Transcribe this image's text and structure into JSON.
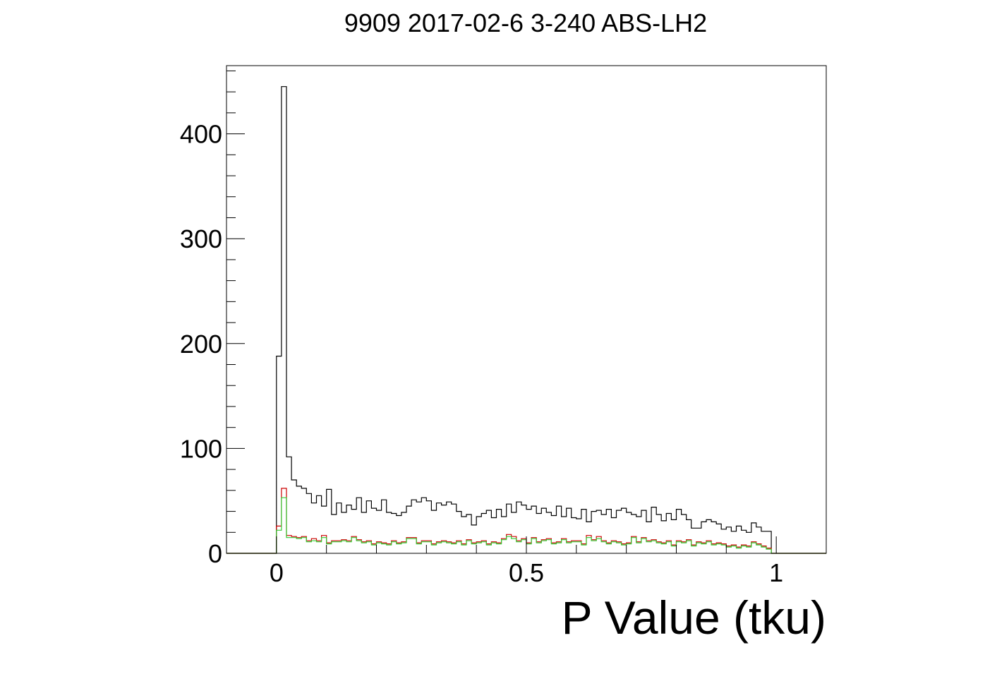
{
  "chart_data": {
    "type": "histogram",
    "title": "9909 2017-02-6 3-240 ABS-LH2",
    "xlabel": "P Value (tku)",
    "ylabel": "",
    "xlim": [
      -0.1,
      1.1
    ],
    "ylim": [
      0,
      465
    ],
    "x_ticks": [
      0,
      0.5,
      1
    ],
    "x_tick_labels": [
      "0",
      "0.5",
      "1"
    ],
    "y_ticks": [
      0,
      100,
      200,
      300,
      400
    ],
    "y_tick_labels": [
      "0",
      "100",
      "200",
      "300",
      "400"
    ],
    "bin_width": 0.01,
    "bin_start": -0.01,
    "series": [
      {
        "color": "#000000",
        "values": [
          0,
          188,
          445,
          92,
          70,
          64,
          62,
          57,
          48,
          55,
          45,
          61,
          37,
          48,
          39,
          46,
          42,
          53,
          39,
          50,
          43,
          41,
          51,
          39,
          38,
          36,
          39,
          45,
          51,
          49,
          53,
          50,
          41,
          48,
          46,
          49,
          47,
          40,
          35,
          37,
          27,
          35,
          38,
          41,
          34,
          42,
          35,
          47,
          39,
          49,
          46,
          42,
          45,
          38,
          43,
          39,
          36,
          45,
          35,
          43,
          34,
          33,
          42,
          30,
          40,
          41,
          37,
          42,
          34,
          41,
          43,
          39,
          37,
          35,
          41,
          30,
          44,
          37,
          31,
          38,
          32,
          42,
          37,
          32,
          24,
          24,
          30,
          32,
          30,
          28,
          23,
          25,
          21,
          26,
          22,
          20,
          29,
          25,
          21,
          21,
          0
        ]
      },
      {
        "color": "#cc0000",
        "values": [
          0,
          26,
          62,
          17,
          16,
          15,
          16,
          12,
          14,
          12,
          17,
          10,
          12,
          12,
          13,
          12,
          16,
          13,
          11,
          12,
          9,
          11,
          10,
          9,
          12,
          10,
          11,
          15,
          15,
          10,
          12,
          12,
          9,
          11,
          12,
          11,
          10,
          12,
          9,
          13,
          10,
          11,
          12,
          9,
          11,
          10,
          14,
          18,
          16,
          12,
          14,
          10,
          15,
          11,
          13,
          14,
          10,
          11,
          14,
          11,
          12,
          12,
          9,
          17,
          13,
          16,
          12,
          10,
          12,
          11,
          9,
          10,
          16,
          11,
          15,
          12,
          13,
          11,
          10,
          12,
          8,
          12,
          11,
          13,
          8,
          11,
          10,
          12,
          9,
          10,
          9,
          7,
          8,
          6,
          8,
          7,
          11,
          9,
          7,
          5,
          0
        ]
      },
      {
        "color": "#33cc33",
        "values": [
          0,
          22,
          53,
          15,
          15,
          14,
          15,
          11,
          12,
          11,
          15,
          9,
          11,
          11,
          12,
          11,
          15,
          12,
          10,
          11,
          8,
          10,
          9,
          8,
          11,
          9,
          10,
          14,
          14,
          9,
          11,
          11,
          8,
          10,
          11,
          10,
          9,
          11,
          8,
          12,
          9,
          10,
          11,
          8,
          10,
          9,
          13,
          16,
          14,
          11,
          13,
          9,
          14,
          10,
          12,
          13,
          9,
          10,
          13,
          10,
          11,
          11,
          8,
          15,
          12,
          14,
          11,
          9,
          11,
          10,
          8,
          9,
          15,
          10,
          14,
          11,
          12,
          10,
          9,
          11,
          7,
          11,
          10,
          12,
          7,
          10,
          9,
          11,
          8,
          9,
          8,
          6,
          7,
          5,
          7,
          6,
          10,
          8,
          6,
          4,
          0
        ]
      }
    ]
  }
}
